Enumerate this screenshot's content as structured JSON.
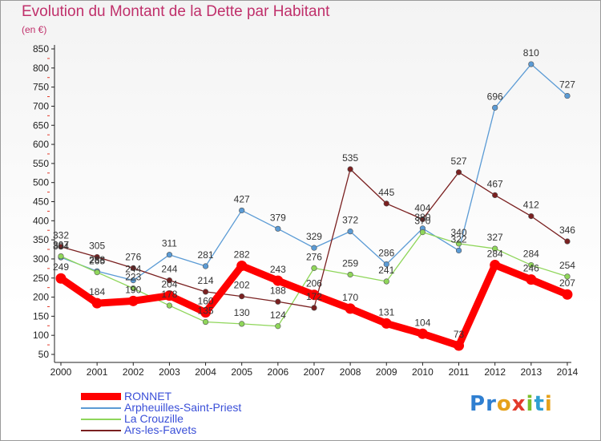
{
  "title": "Evolution du Montant de la Dette par Habitant",
  "unit_label": "(en €)",
  "logo": {
    "letters": [
      "P",
      "r",
      "o",
      "x",
      "i",
      "t",
      "i"
    ],
    "colors": [
      "#2f7fd1",
      "#2f7fd1",
      "#e6a11a",
      "#e23b2b",
      "#7bbf2a",
      "#2f9fd1",
      "#e6a11a"
    ]
  },
  "chart_data": {
    "type": "line",
    "x": [
      "2000",
      "2001",
      "2002",
      "2003",
      "2004",
      "2005",
      "2006",
      "2007",
      "2008",
      "2009",
      "2010",
      "2011",
      "2012",
      "2013",
      "2014"
    ],
    "ylim": [
      50,
      850
    ],
    "yticks": [
      50,
      100,
      150,
      200,
      250,
      300,
      350,
      400,
      450,
      500,
      550,
      600,
      650,
      700,
      750,
      800,
      850
    ],
    "grid": false,
    "legend_position": "bottom-left",
    "series": [
      {
        "name": "RONNET",
        "color": "#ff0000",
        "values": [
          249,
          184,
          190,
          204,
          160,
          282,
          243,
          206,
          170,
          131,
          104,
          73,
          284,
          246,
          207
        ],
        "labels": [
          "249",
          "184",
          "190",
          "204",
          "160",
          "282",
          "243",
          "206",
          "170",
          "131",
          "104",
          "73",
          "284",
          "246",
          "207"
        ]
      },
      {
        "name": "Arpheuilles-Saint-Priest",
        "color": "#5b9bd5",
        "values": [
          304,
          268,
          244,
          311,
          281,
          427,
          379,
          329,
          372,
          286,
          380,
          322,
          696,
          810,
          727
        ],
        "labels": [
          "304",
          "268",
          "244",
          "311",
          "281",
          "427",
          "379",
          "329",
          "372",
          "286",
          "380",
          "322",
          "696",
          "810",
          "727"
        ]
      },
      {
        "name": "La Crouzille",
        "color": "#8fd65a",
        "values": [
          307,
          265,
          223,
          178,
          135,
          130,
          124,
          276,
          259,
          241,
          370,
          340,
          327,
          284,
          254
        ],
        "labels": [
          "307",
          "265",
          "223",
          "178",
          "135",
          "130",
          "124",
          "276",
          "259",
          "241",
          "370",
          "340",
          "327",
          "284",
          "254"
        ]
      },
      {
        "name": "Ars-les-Favets",
        "color": "#7a2020",
        "values": [
          332,
          305,
          276,
          244,
          214,
          202,
          188,
          172,
          535,
          445,
          404,
          527,
          467,
          412,
          346
        ],
        "labels": [
          "332",
          "305",
          "276",
          "244",
          "214",
          "202",
          "188",
          "172",
          "535",
          "445",
          "404",
          "527",
          "467",
          "412",
          "346"
        ]
      }
    ]
  }
}
